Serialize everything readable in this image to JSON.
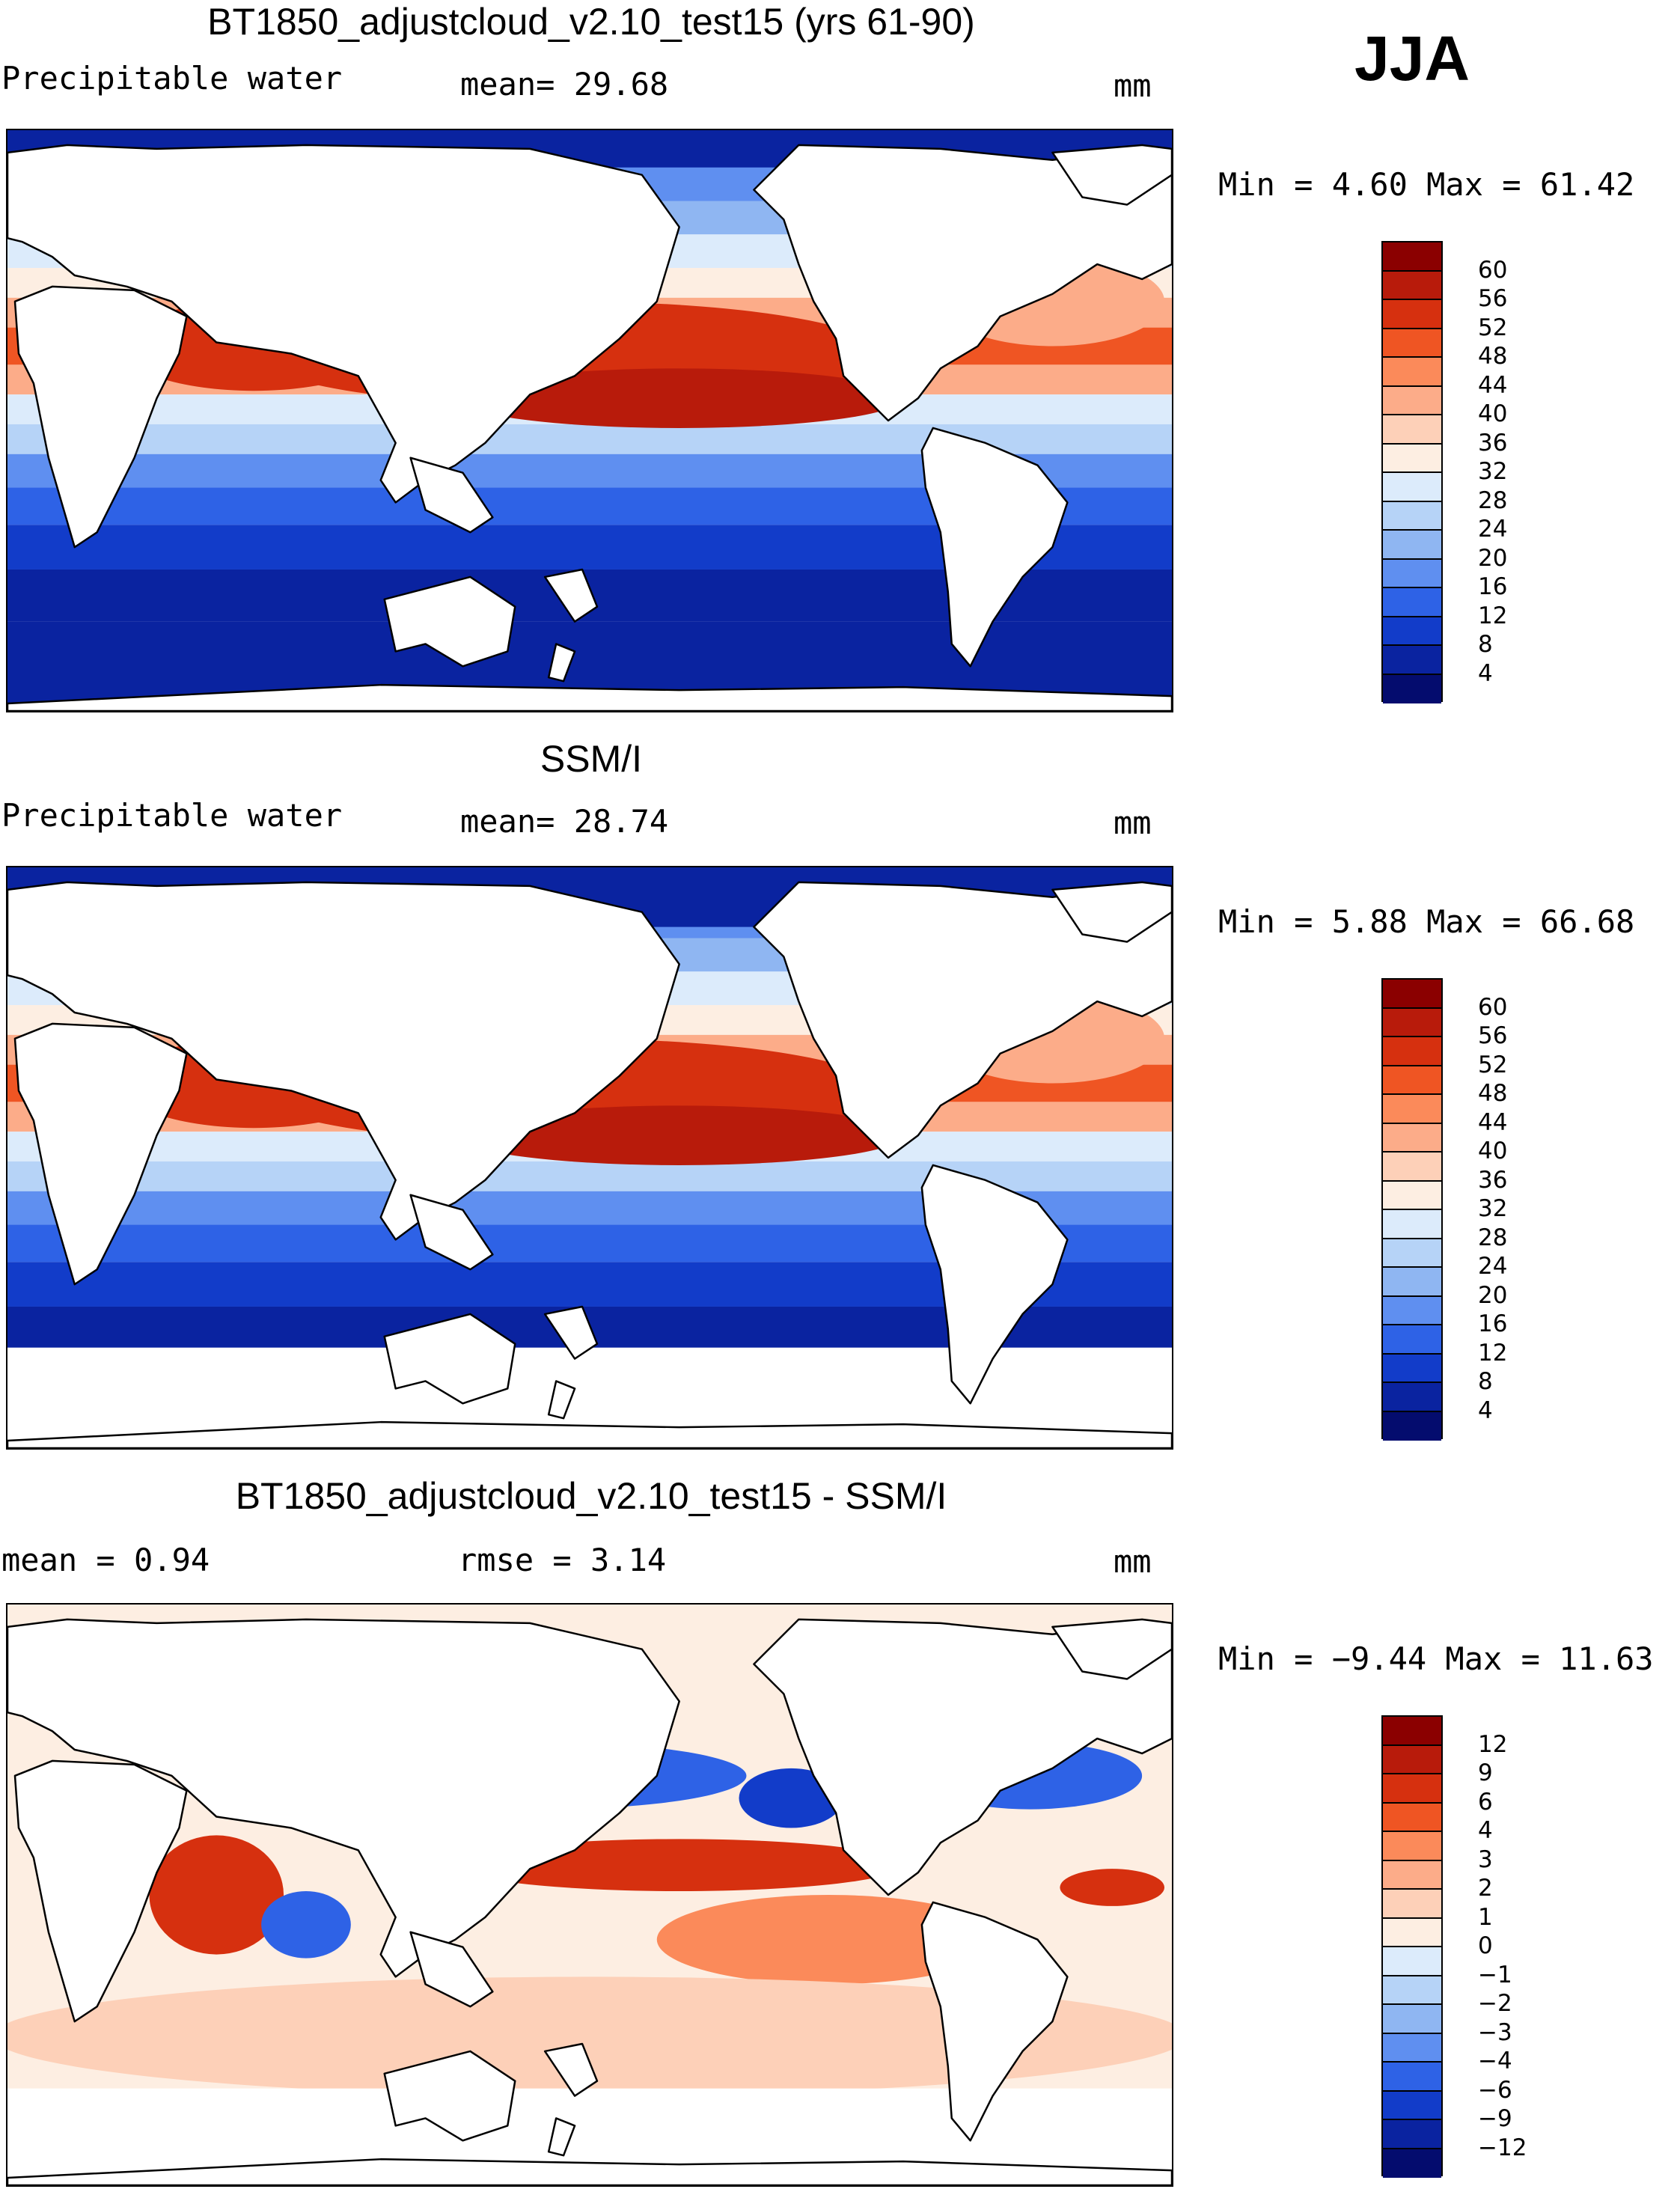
{
  "season": "JJA",
  "panels": [
    {
      "title": "BT1850_adjustcloud_v2.10_test15 (yrs 61-90)",
      "left_label": "Precipitable water",
      "center_label": "mean=  29.68",
      "units": "mm",
      "stats": "Min =   4.60 Max =  61.42",
      "colorbar_labels": [
        "60",
        "56",
        "52",
        "48",
        "44",
        "40",
        "36",
        "32",
        "28",
        "24",
        "20",
        "16",
        "12",
        "8",
        "4"
      ],
      "colors": [
        "#8b0000",
        "#b81b0b",
        "#d6300f",
        "#ef5523",
        "#fb8a5a",
        "#fcac89",
        "#fdd0b8",
        "#fdeee2",
        "#dcebfb",
        "#b6d3f7",
        "#8fb6f2",
        "#5f8ff0",
        "#2e62e6",
        "#123cc9",
        "#0a23a0",
        "#040c6e"
      ],
      "map": "model"
    },
    {
      "title": "SSM/I",
      "left_label": "Precipitable water",
      "center_label": "mean=  28.74",
      "units": "mm",
      "stats": "Min =   5.88 Max =  66.68",
      "colorbar_labels": [
        "60",
        "56",
        "52",
        "48",
        "44",
        "40",
        "36",
        "32",
        "28",
        "24",
        "20",
        "16",
        "12",
        "8",
        "4"
      ],
      "colors": [
        "#8b0000",
        "#b81b0b",
        "#d6300f",
        "#ef5523",
        "#fb8a5a",
        "#fcac89",
        "#fdd0b8",
        "#fdeee2",
        "#dcebfb",
        "#b6d3f7",
        "#8fb6f2",
        "#5f8ff0",
        "#2e62e6",
        "#123cc9",
        "#0a23a0",
        "#040c6e"
      ],
      "map": "obs"
    },
    {
      "title": "BT1850_adjustcloud_v2.10_test15 - SSM/I",
      "left_label": "mean =   0.94",
      "center_label": "rmse =   3.14",
      "units": "mm",
      "stats": "Min =  −9.44 Max =  11.63",
      "colorbar_labels": [
        "12",
        "9",
        "6",
        "4",
        "3",
        "2",
        "1",
        "0",
        "−1",
        "−2",
        "−3",
        "−4",
        "−6",
        "−9",
        "−12"
      ],
      "colors": [
        "#8b0000",
        "#b81b0b",
        "#d6300f",
        "#ef5523",
        "#fb8a5a",
        "#fcac89",
        "#fdd0b8",
        "#fdeee2",
        "#dcebfb",
        "#b6d3f7",
        "#8fb6f2",
        "#5f8ff0",
        "#2e62e6",
        "#123cc9",
        "#0a23a0",
        "#040c6e"
      ],
      "map": "diff"
    }
  ]
}
